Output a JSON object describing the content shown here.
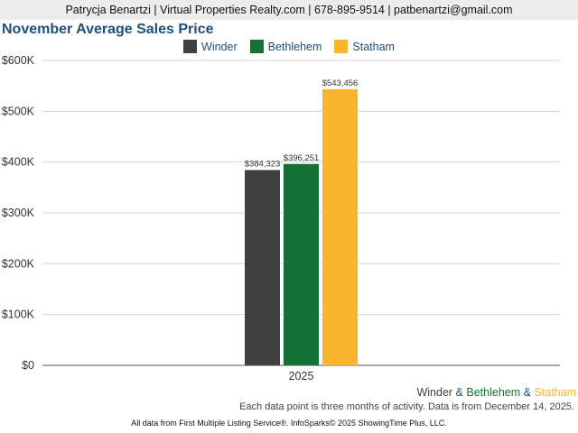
{
  "header": {
    "contact": "Patrycja Benartzi | Virtual Properties Realty.com | 678-895-9514 | patbenartzi@gmail.com"
  },
  "chart_data": {
    "type": "bar",
    "title": "November Average Sales Price",
    "categories": [
      "2025"
    ],
    "series": [
      {
        "name": "Winder",
        "values": [
          384323
        ],
        "color": "#404040",
        "label": "$384,323"
      },
      {
        "name": "Bethlehem",
        "values": [
          396251
        ],
        "color": "#147238",
        "label": "$396,251"
      },
      {
        "name": "Statham",
        "values": [
          543456
        ],
        "color": "#f9b52e",
        "label": "$543,456"
      }
    ],
    "ylim": [
      0,
      600000
    ],
    "yticks": [
      {
        "value": 0,
        "label": "$0"
      },
      {
        "value": 100000,
        "label": "$100K"
      },
      {
        "value": 200000,
        "label": "$200K"
      },
      {
        "value": 300000,
        "label": "$300K"
      },
      {
        "value": 400000,
        "label": "$400K"
      },
      {
        "value": 500000,
        "label": "$500K"
      },
      {
        "value": 600000,
        "label": "$600K"
      }
    ],
    "grid": true,
    "legend_position": "top-center"
  },
  "footer": {
    "series_1": "Winder",
    "sep_1": " & ",
    "series_2": "Bethlehem",
    "sep_2": " & ",
    "series_3": "Statham",
    "note": "Each data point is three months of activity. Data is from December 14, 2025.",
    "source": "All data from First Multiple Listing Service®. InfoSparks© 2025 ShowingTime Plus, LLC."
  }
}
